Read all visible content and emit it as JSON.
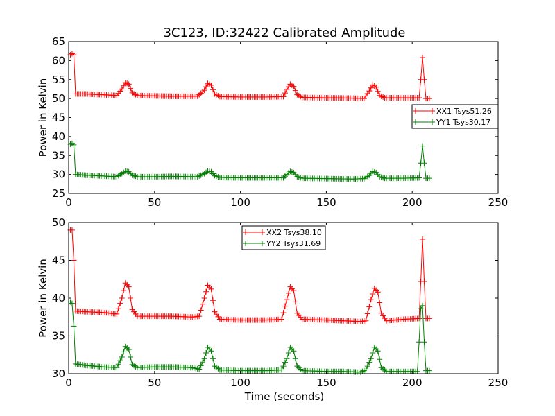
{
  "figure": {
    "title": "3C123, ID:32422 Calibrated Amplitude",
    "xlabel": "Time (seconds)"
  },
  "chart_data": [
    {
      "type": "line",
      "title": "3C123, ID:32422 Calibrated Amplitude",
      "xlabel": "",
      "ylabel": "Power in Kelvin",
      "xlim": [
        0,
        250
      ],
      "ylim": [
        25,
        65
      ],
      "xticks": [
        "0",
        "50",
        "100",
        "150",
        "200",
        "250"
      ],
      "yticks": [
        "25",
        "30",
        "35",
        "40",
        "45",
        "50",
        "55",
        "60",
        "65"
      ],
      "grid": false,
      "legend_position": "right",
      "x_range": [
        1,
        210
      ],
      "series": [
        {
          "name": "XX1 Tsys51.26",
          "color": "#ff0000",
          "marker": "+",
          "points": [
            [
              1,
              61.5
            ],
            [
              2,
              61.8
            ],
            [
              3,
              61.5
            ],
            [
              4,
              51.2
            ],
            [
              10,
              51.2
            ],
            [
              20,
              51.0
            ],
            [
              28,
              50.8
            ],
            [
              31,
              52.5
            ],
            [
              33,
              54.2
            ],
            [
              35,
              53.8
            ],
            [
              37,
              51.5
            ],
            [
              40,
              50.8
            ],
            [
              50,
              50.7
            ],
            [
              60,
              50.6
            ],
            [
              75,
              50.6
            ],
            [
              79,
              52.2
            ],
            [
              81,
              54.0
            ],
            [
              83,
              53.5
            ],
            [
              85,
              51.2
            ],
            [
              88,
              50.5
            ],
            [
              100,
              50.4
            ],
            [
              115,
              50.4
            ],
            [
              125,
              50.5
            ],
            [
              127,
              52.4
            ],
            [
              129,
              53.8
            ],
            [
              131,
              53.2
            ],
            [
              133,
              51.0
            ],
            [
              136,
              50.3
            ],
            [
              150,
              50.2
            ],
            [
              165,
              50.1
            ],
            [
              172,
              50.0
            ],
            [
              175,
              52.0
            ],
            [
              177,
              53.6
            ],
            [
              179,
              53.0
            ],
            [
              181,
              50.8
            ],
            [
              184,
              50.2
            ],
            [
              195,
              50.2
            ],
            [
              204,
              50.2
            ],
            [
              205,
              55.0
            ],
            [
              206,
              60.8
            ],
            [
              207,
              55.0
            ],
            [
              208,
              50.0
            ],
            [
              210,
              50.0
            ]
          ]
        },
        {
          "name": "YY1 Tsys30.17",
          "color": "#008000",
          "marker": "+",
          "points": [
            [
              1,
              38.0
            ],
            [
              2,
              38.2
            ],
            [
              3,
              37.8
            ],
            [
              4,
              30.0
            ],
            [
              10,
              29.8
            ],
            [
              20,
              29.6
            ],
            [
              28,
              29.4
            ],
            [
              31,
              30.2
            ],
            [
              33,
              30.9
            ],
            [
              35,
              30.7
            ],
            [
              37,
              29.8
            ],
            [
              40,
              29.4
            ],
            [
              50,
              29.4
            ],
            [
              60,
              29.5
            ],
            [
              75,
              29.4
            ],
            [
              79,
              30.2
            ],
            [
              81,
              30.9
            ],
            [
              83,
              30.7
            ],
            [
              85,
              29.7
            ],
            [
              88,
              29.2
            ],
            [
              100,
              29.1
            ],
            [
              115,
              29.1
            ],
            [
              125,
              29.1
            ],
            [
              127,
              30.0
            ],
            [
              129,
              30.8
            ],
            [
              131,
              30.5
            ],
            [
              133,
              29.4
            ],
            [
              136,
              29.0
            ],
            [
              150,
              28.9
            ],
            [
              165,
              28.8
            ],
            [
              172,
              28.9
            ],
            [
              175,
              29.8
            ],
            [
              177,
              30.8
            ],
            [
              179,
              30.5
            ],
            [
              181,
              29.4
            ],
            [
              184,
              29.0
            ],
            [
              195,
              29.0
            ],
            [
              204,
              29.1
            ],
            [
              205,
              33.0
            ],
            [
              206,
              37.5
            ],
            [
              207,
              33.0
            ],
            [
              208,
              29.0
            ],
            [
              210,
              29.0
            ]
          ]
        }
      ]
    },
    {
      "type": "line",
      "title": "",
      "xlabel": "Time (seconds)",
      "ylabel": "Power in Kelvin",
      "xlim": [
        0,
        250
      ],
      "ylim": [
        30,
        50
      ],
      "xticks": [
        "0",
        "50",
        "100",
        "150",
        "200",
        "250"
      ],
      "yticks": [
        "30",
        "35",
        "40",
        "45",
        "50"
      ],
      "grid": false,
      "legend_position": "top-center",
      "x_range": [
        1,
        210
      ],
      "series": [
        {
          "name": "XX2 Tsys38.10",
          "color": "#ff0000",
          "marker": "+",
          "points": [
            [
              1,
              49.0
            ],
            [
              2,
              49.0
            ],
            [
              3,
              45.0
            ],
            [
              4,
              38.3
            ],
            [
              10,
              38.2
            ],
            [
              20,
              38.1
            ],
            [
              28,
              37.9
            ],
            [
              31,
              40.0
            ],
            [
              33,
              42.0
            ],
            [
              35,
              41.5
            ],
            [
              37,
              38.5
            ],
            [
              40,
              37.6
            ],
            [
              50,
              37.6
            ],
            [
              60,
              37.6
            ],
            [
              72,
              37.5
            ],
            [
              76,
              37.6
            ],
            [
              79,
              40.0
            ],
            [
              81,
              41.7
            ],
            [
              83,
              41.2
            ],
            [
              85,
              38.2
            ],
            [
              88,
              37.2
            ],
            [
              100,
              37.1
            ],
            [
              115,
              37.1
            ],
            [
              124,
              37.2
            ],
            [
              127,
              39.8
            ],
            [
              129,
              41.5
            ],
            [
              131,
              41.0
            ],
            [
              133,
              38.0
            ],
            [
              136,
              37.2
            ],
            [
              150,
              37.1
            ],
            [
              160,
              37.0
            ],
            [
              170,
              36.9
            ],
            [
              173,
              37.0
            ],
            [
              176,
              39.8
            ],
            [
              178,
              41.3
            ],
            [
              180,
              40.8
            ],
            [
              182,
              38.0
            ],
            [
              185,
              37.0
            ],
            [
              195,
              37.2
            ],
            [
              204,
              37.3
            ],
            [
              205,
              42.2
            ],
            [
              206,
              47.8
            ],
            [
              207,
              42.2
            ],
            [
              208,
              37.3
            ],
            [
              210,
              37.3
            ]
          ]
        },
        {
          "name": "YY2 Tsys31.69",
          "color": "#008000",
          "marker": "+",
          "points": [
            [
              1,
              39.5
            ],
            [
              2,
              39.3
            ],
            [
              3,
              36.3
            ],
            [
              4,
              31.3
            ],
            [
              10,
              31.1
            ],
            [
              20,
              30.9
            ],
            [
              28,
              30.8
            ],
            [
              31,
              32.2
            ],
            [
              33,
              33.6
            ],
            [
              35,
              33.2
            ],
            [
              37,
              31.2
            ],
            [
              40,
              30.8
            ],
            [
              50,
              30.9
            ],
            [
              60,
              30.9
            ],
            [
              72,
              30.8
            ],
            [
              76,
              30.6
            ],
            [
              79,
              32.0
            ],
            [
              81,
              33.5
            ],
            [
              83,
              33.0
            ],
            [
              85,
              31.0
            ],
            [
              88,
              30.5
            ],
            [
              100,
              30.4
            ],
            [
              115,
              30.4
            ],
            [
              124,
              30.5
            ],
            [
              127,
              32.0
            ],
            [
              129,
              33.5
            ],
            [
              131,
              33.0
            ],
            [
              133,
              31.0
            ],
            [
              136,
              30.4
            ],
            [
              150,
              30.3
            ],
            [
              160,
              30.3
            ],
            [
              170,
              30.2
            ],
            [
              173,
              30.5
            ],
            [
              176,
              32.0
            ],
            [
              178,
              33.5
            ],
            [
              180,
              33.0
            ],
            [
              182,
              30.8
            ],
            [
              185,
              30.3
            ],
            [
              195,
              30.3
            ],
            [
              203,
              30.3
            ],
            [
              204,
              34.2
            ],
            [
              205,
              38.6
            ],
            [
              206,
              39.0
            ],
            [
              207,
              34.2
            ],
            [
              208,
              30.4
            ],
            [
              210,
              30.4
            ]
          ]
        }
      ]
    }
  ]
}
